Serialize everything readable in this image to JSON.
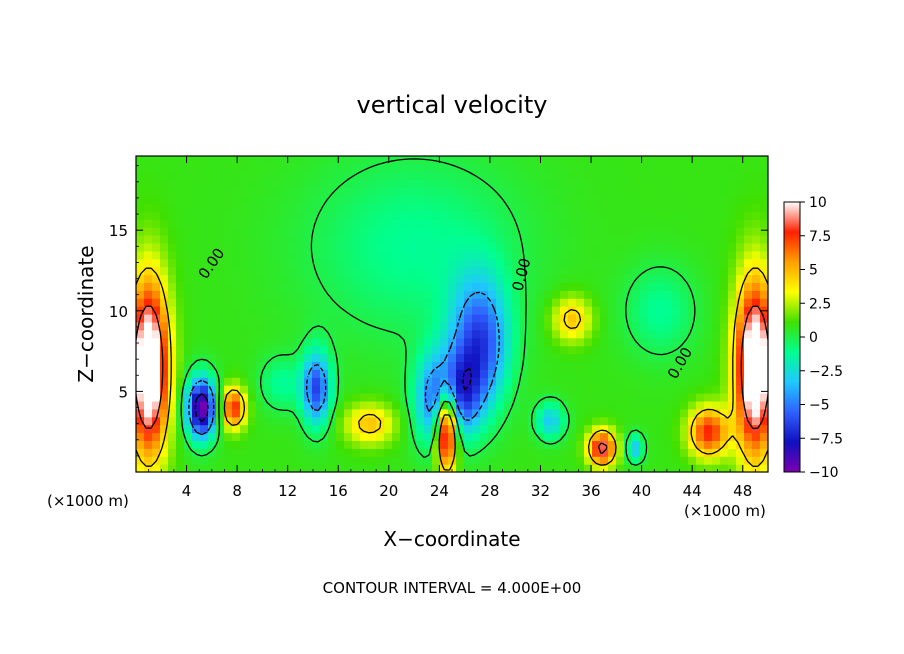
{
  "chart_data": {
    "type": "heatmap",
    "title": "vertical velocity",
    "xlabel": "X−coordinate",
    "ylabel": "Z−coordinate",
    "x_unit_left": "(×1000 m)",
    "x_unit_right": "(×1000 m)",
    "footer": "CONTOUR INTERVAL = 4.000E+00",
    "xlim": [
      0,
      50
    ],
    "ylim": [
      0,
      19.6
    ],
    "x_ticks": [
      4,
      8,
      12,
      16,
      20,
      24,
      28,
      32,
      36,
      40,
      44,
      48
    ],
    "y_ticks": [
      5,
      10,
      15
    ],
    "zero_contour_label": "0.00",
    "colorbar": {
      "min": -10,
      "max": 10,
      "tick_values": [
        10,
        7.5,
        5,
        2.5,
        0,
        -2.5,
        -5,
        -7.5,
        -10
      ],
      "tick_labels": [
        "10",
        "7.5",
        "5",
        "2.5",
        "0",
        "−2.5",
        "−5",
        "−7.5",
        "−10"
      ],
      "colors": [
        "#7a00b0",
        "#1010c0",
        "#3060ff",
        "#20c8ff",
        "#00ff90",
        "#40e000",
        "#ffff00",
        "#ffa000",
        "#ff2000",
        "#ffffff"
      ]
    },
    "features": [
      {
        "x": 1.0,
        "z": 6.5,
        "sx": 1.1,
        "sz": 3.8,
        "w": 12
      },
      {
        "x": 49.0,
        "z": 6.5,
        "sx": 1.1,
        "sz": 3.8,
        "w": 12
      },
      {
        "x": 5.2,
        "z": 4.0,
        "sx": 0.8,
        "sz": 1.3,
        "w": -11
      },
      {
        "x": 7.7,
        "z": 4.0,
        "sx": 0.7,
        "sz": 0.9,
        "w": 7
      },
      {
        "x": 14.3,
        "z": 5.2,
        "sx": 0.8,
        "sz": 1.6,
        "w": -7
      },
      {
        "x": 18.5,
        "z": 3.0,
        "sx": 1.4,
        "sz": 0.9,
        "w": 4
      },
      {
        "x": 24.6,
        "z": 2.8,
        "sx": 0.6,
        "sz": 1.8,
        "w": 12
      },
      {
        "x": 23.8,
        "z": 4.5,
        "sx": 1.2,
        "sz": 2.0,
        "w": -6
      },
      {
        "x": 27.2,
        "z": 8.0,
        "sx": 1.6,
        "sz": 2.8,
        "w": -7
      },
      {
        "x": 25.8,
        "z": 4.8,
        "sx": 1.2,
        "sz": 1.8,
        "w": -5
      },
      {
        "x": 34.5,
        "z": 9.5,
        "sx": 1.1,
        "sz": 1.0,
        "w": 4
      },
      {
        "x": 36.9,
        "z": 1.5,
        "sx": 0.8,
        "sz": 0.8,
        "w": 8
      },
      {
        "x": 45.3,
        "z": 2.5,
        "sx": 1.1,
        "sz": 1.1,
        "w": 7
      },
      {
        "x": 11.5,
        "z": 5.5,
        "sx": 1.2,
        "sz": 1.2,
        "w": -2
      },
      {
        "x": 32.8,
        "z": 3.2,
        "sx": 0.8,
        "sz": 0.8,
        "w": -4
      },
      {
        "x": 39.5,
        "z": 1.5,
        "sx": 0.5,
        "sz": 0.6,
        "w": -4
      },
      {
        "x": 22.0,
        "z": 14.0,
        "sx": 6.0,
        "sz": 4.0,
        "w": -2
      },
      {
        "x": 41.5,
        "z": 10.0,
        "sx": 2.0,
        "sz": 2.0,
        "w": -2
      }
    ]
  }
}
